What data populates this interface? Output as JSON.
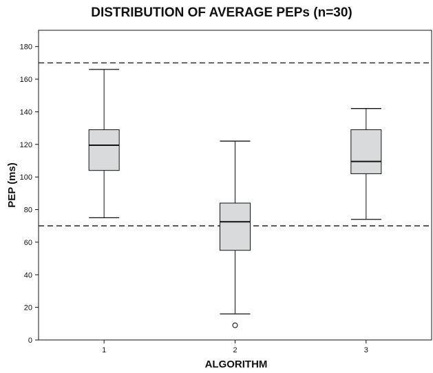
{
  "chart_data": {
    "type": "box",
    "title": "DISTRIBUTION OF AVERAGE PEPs (n=30)",
    "xlabel": "ALGORITHM",
    "ylabel": "PEP (ms)",
    "ylim": [
      0,
      190
    ],
    "yticks": [
      0,
      20,
      40,
      60,
      80,
      100,
      120,
      140,
      160,
      180
    ],
    "categories": [
      "1",
      "2",
      "3"
    ],
    "boxes": [
      {
        "category": "1",
        "whisker_low": 75,
        "q1": 104,
        "median": 119.5,
        "q3": 129,
        "whisker_high": 166,
        "outliers": []
      },
      {
        "category": "2",
        "whisker_low": 16,
        "q1": 55,
        "median": 72.5,
        "q3": 84,
        "whisker_high": 122,
        "outliers": [
          9
        ]
      },
      {
        "category": "3",
        "whisker_low": 74,
        "q1": 102,
        "median": 109.5,
        "q3": 129,
        "whisker_high": 142,
        "outliers": []
      }
    ],
    "reference_lines": [
      170,
      70
    ],
    "grid": false,
    "box_fill": "#d9dadb",
    "line_color": "#111111"
  }
}
